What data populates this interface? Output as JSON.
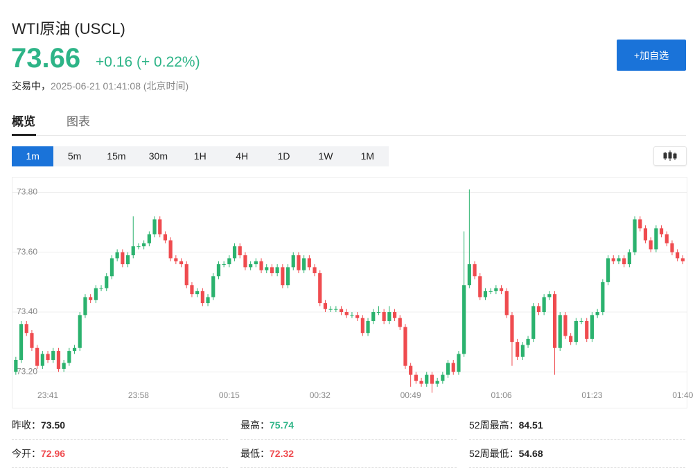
{
  "header": {
    "name": "WTI原油 (USCL)",
    "price": "73.66",
    "change": "+0.16 (+ 0.22%)",
    "status": "交易中，",
    "time": "2025-06-21 01:41:08 (北京时间)",
    "watch_button": "+加自选",
    "price_color": "#2db487"
  },
  "tabs": [
    "概览",
    "图表"
  ],
  "intervals": [
    "1m",
    "5m",
    "15m",
    "30m",
    "1H",
    "4H",
    "1D",
    "1W",
    "1M"
  ],
  "chart_data": {
    "type": "candlestick",
    "categories": [
      null,
      null,
      null,
      null,
      null,
      null,
      "23:41",
      null,
      null,
      null,
      null,
      null,
      null,
      null,
      null,
      null,
      null,
      null,
      null,
      null,
      null,
      null,
      null,
      "23:58",
      null,
      null,
      null,
      null,
      null,
      null,
      null,
      null,
      null,
      null,
      null,
      null,
      null,
      null,
      null,
      null,
      "00:15",
      null,
      null,
      null,
      null,
      null,
      null,
      null,
      null,
      null,
      null,
      null,
      null,
      null,
      null,
      null,
      null,
      "00:32",
      null,
      null,
      null,
      null,
      null,
      null,
      null,
      null,
      null,
      null,
      null,
      null,
      null,
      null,
      null,
      null,
      "00:49",
      null,
      null,
      null,
      null,
      null,
      null,
      null,
      null,
      null,
      null,
      null,
      null,
      null,
      null,
      null,
      null,
      "01:06",
      null,
      null,
      null,
      null,
      null,
      null,
      null,
      null,
      null,
      null,
      null,
      null,
      null,
      null,
      null,
      null,
      "01:23",
      null,
      null,
      null,
      null,
      null,
      null,
      null,
      null,
      null,
      null,
      null,
      null,
      null,
      null,
      null,
      null,
      "01:40"
    ],
    "open": [
      73.2,
      73.24,
      73.36,
      73.33,
      73.28,
      73.22,
      73.26,
      73.24,
      73.27,
      73.21,
      73.23,
      73.27,
      73.28,
      73.39,
      73.45,
      73.44,
      73.48,
      73.48,
      73.52,
      73.58,
      73.6,
      73.56,
      73.59,
      73.62,
      73.62,
      73.63,
      73.66,
      73.71,
      73.66,
      73.64,
      73.58,
      73.57,
      73.56,
      73.49,
      73.46,
      73.47,
      73.43,
      73.45,
      73.52,
      73.56,
      73.56,
      73.58,
      73.62,
      73.59,
      73.55,
      73.56,
      73.57,
      73.54,
      73.55,
      73.53,
      73.55,
      73.49,
      73.55,
      73.59,
      73.54,
      73.58,
      73.55,
      73.53,
      73.43,
      73.41,
      73.41,
      73.41,
      73.4,
      73.39,
      73.39,
      73.38,
      73.33,
      73.37,
      73.4,
      73.4,
      73.37,
      73.4,
      73.38,
      73.35,
      73.22,
      73.19,
      73.17,
      73.16,
      73.19,
      73.16,
      73.17,
      73.19,
      73.23,
      73.2,
      73.26,
      73.49,
      73.56,
      73.52,
      73.45,
      73.47,
      73.47,
      73.48,
      73.47,
      73.39,
      73.3,
      73.25,
      73.29,
      73.31,
      73.42,
      73.4,
      73.45,
      73.46,
      73.28,
      73.39,
      73.32,
      73.3,
      73.37,
      73.37,
      73.31,
      73.39,
      73.4,
      73.5,
      73.58,
      73.57,
      73.58,
      73.56,
      73.6,
      73.71,
      73.68,
      73.64,
      73.61,
      73.68,
      73.66,
      73.63,
      73.6,
      73.58
    ],
    "high": [
      73.25,
      73.37,
      73.37,
      73.34,
      73.29,
      73.27,
      73.27,
      73.28,
      73.28,
      73.24,
      73.28,
      73.29,
      73.4,
      73.46,
      73.46,
      73.49,
      73.49,
      73.53,
      73.59,
      73.61,
      73.61,
      73.6,
      73.72,
      73.63,
      73.64,
      73.67,
      73.72,
      73.72,
      73.67,
      73.65,
      73.59,
      73.58,
      73.57,
      73.5,
      73.48,
      73.48,
      73.46,
      73.53,
      73.57,
      73.57,
      73.59,
      73.63,
      73.63,
      73.6,
      73.57,
      73.58,
      73.58,
      73.56,
      73.56,
      73.56,
      73.56,
      73.56,
      73.6,
      73.6,
      73.59,
      73.59,
      73.56,
      73.54,
      73.44,
      73.42,
      73.42,
      73.42,
      73.41,
      73.4,
      73.4,
      73.39,
      73.38,
      73.41,
      73.42,
      73.41,
      73.42,
      73.41,
      73.39,
      73.36,
      73.23,
      73.2,
      73.18,
      73.2,
      73.2,
      73.18,
      73.2,
      73.24,
      73.24,
      73.27,
      73.67,
      73.81,
      73.57,
      73.53,
      73.48,
      73.48,
      73.49,
      73.49,
      73.48,
      73.4,
      73.31,
      73.3,
      73.32,
      73.43,
      73.43,
      73.46,
      73.47,
      73.47,
      73.4,
      73.4,
      73.33,
      73.38,
      73.38,
      73.38,
      73.4,
      73.41,
      73.51,
      73.59,
      73.59,
      73.59,
      73.59,
      73.61,
      73.72,
      73.72,
      73.69,
      73.65,
      73.69,
      73.69,
      73.67,
      73.64,
      73.61,
      73.59
    ],
    "low": [
      73.19,
      73.23,
      73.32,
      73.27,
      73.21,
      73.21,
      73.23,
      73.23,
      73.2,
      73.2,
      73.22,
      73.26,
      73.27,
      73.38,
      73.43,
      73.43,
      73.47,
      73.47,
      73.51,
      73.57,
      73.55,
      73.55,
      73.58,
      73.61,
      73.61,
      73.62,
      73.65,
      73.65,
      73.63,
      73.57,
      73.56,
      73.55,
      73.48,
      73.45,
      73.45,
      73.42,
      73.42,
      73.44,
      73.51,
      73.55,
      73.55,
      73.57,
      73.58,
      73.54,
      73.54,
      73.55,
      73.53,
      73.53,
      73.52,
      73.52,
      73.48,
      73.48,
      73.54,
      73.53,
      73.53,
      73.54,
      73.52,
      73.42,
      73.4,
      73.4,
      73.4,
      73.39,
      73.38,
      73.38,
      73.37,
      73.32,
      73.32,
      73.36,
      73.39,
      73.36,
      73.36,
      73.37,
      73.34,
      73.21,
      73.15,
      73.16,
      73.15,
      73.15,
      73.13,
      73.15,
      73.16,
      73.18,
      73.19,
      73.19,
      73.25,
      73.48,
      73.51,
      73.44,
      73.44,
      73.46,
      73.46,
      73.46,
      73.38,
      73.22,
      73.24,
      73.24,
      73.28,
      73.3,
      73.39,
      73.39,
      73.44,
      73.19,
      73.27,
      73.31,
      73.29,
      73.29,
      73.36,
      73.3,
      73.3,
      73.38,
      73.39,
      73.49,
      73.56,
      73.56,
      73.55,
      73.55,
      73.59,
      73.67,
      73.63,
      73.6,
      73.6,
      73.65,
      73.62,
      73.59,
      73.57,
      73.56
    ],
    "close": [
      73.24,
      73.36,
      73.33,
      73.28,
      73.22,
      73.26,
      73.24,
      73.27,
      73.21,
      73.23,
      73.27,
      73.28,
      73.39,
      73.45,
      73.44,
      73.48,
      73.48,
      73.52,
      73.58,
      73.6,
      73.56,
      73.59,
      73.62,
      73.62,
      73.63,
      73.66,
      73.71,
      73.66,
      73.64,
      73.58,
      73.57,
      73.56,
      73.49,
      73.46,
      73.47,
      73.43,
      73.45,
      73.52,
      73.56,
      73.56,
      73.58,
      73.62,
      73.59,
      73.55,
      73.56,
      73.57,
      73.54,
      73.55,
      73.53,
      73.55,
      73.49,
      73.55,
      73.59,
      73.54,
      73.58,
      73.55,
      73.53,
      73.43,
      73.41,
      73.41,
      73.41,
      73.4,
      73.39,
      73.39,
      73.38,
      73.33,
      73.37,
      73.4,
      73.4,
      73.37,
      73.4,
      73.38,
      73.35,
      73.22,
      73.19,
      73.17,
      73.16,
      73.19,
      73.16,
      73.17,
      73.19,
      73.23,
      73.2,
      73.26,
      73.49,
      73.56,
      73.52,
      73.45,
      73.47,
      73.47,
      73.48,
      73.47,
      73.39,
      73.3,
      73.25,
      73.29,
      73.31,
      73.42,
      73.4,
      73.45,
      73.46,
      73.28,
      73.39,
      73.32,
      73.3,
      73.37,
      73.37,
      73.31,
      73.39,
      73.4,
      73.5,
      73.58,
      73.57,
      73.58,
      73.56,
      73.6,
      73.71,
      73.68,
      73.64,
      73.61,
      73.68,
      73.66,
      73.63,
      73.6,
      73.58,
      73.57
    ],
    "ylim": [
      73.08,
      73.85
    ],
    "yticks": [
      {
        "value": 73.2,
        "label": "73.20"
      },
      {
        "value": 73.4,
        "label": "73.40"
      },
      {
        "value": 73.6,
        "label": "73.60"
      },
      {
        "value": 73.8,
        "label": "73.80"
      }
    ],
    "grid": true,
    "up_color": "#2bb26e",
    "down_color": "#ef4b4f"
  },
  "stats": [
    {
      "label": "昨收：",
      "value": "73.50",
      "color": "#222222"
    },
    {
      "label": "最高：",
      "value": "75.74",
      "color": "#2db487"
    },
    {
      "label": "52周最高：",
      "value": "84.51",
      "color": "#222222"
    },
    {
      "label": "今开：",
      "value": "72.96",
      "color": "#ef4b4f"
    },
    {
      "label": "最低：",
      "value": "72.32",
      "color": "#ef4b4f"
    },
    {
      "label": "52周最低：",
      "value": "54.68",
      "color": "#222222"
    }
  ]
}
